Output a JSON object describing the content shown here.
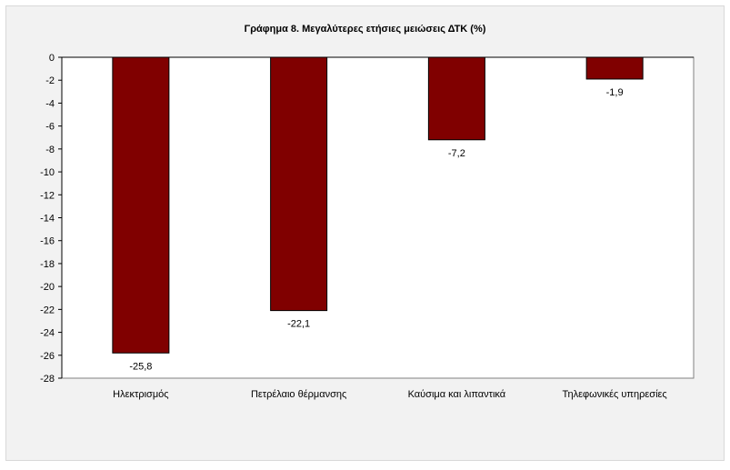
{
  "chart_data": {
    "type": "bar",
    "title": "Γράφημα 8. Μεγαλύτερες ετήσιες μειώσεις ΔΤΚ (%)",
    "categories": [
      "Ηλεκτρισμός",
      "Πετρέλαιο θέρμανσης",
      "Καύσιμα και λιπαντικά",
      "Τηλεφωνικές υπηρεσίες"
    ],
    "values": [
      -25.8,
      -22.1,
      -7.2,
      -1.9
    ],
    "data_labels": [
      "-25,8",
      "-22,1",
      "-7,2",
      "-1,9"
    ],
    "ylim": [
      -28,
      0
    ],
    "y_ticks": [
      0,
      -2,
      -4,
      -6,
      -8,
      -10,
      -12,
      -14,
      -16,
      -18,
      -20,
      -22,
      -24,
      -26,
      -28
    ],
    "xlabel": "",
    "ylabel": "",
    "grid": false,
    "legend": "none",
    "colors": {
      "bar": "#800000",
      "plot_area": "#ffffff",
      "frame": "#f2f2f2"
    }
  }
}
